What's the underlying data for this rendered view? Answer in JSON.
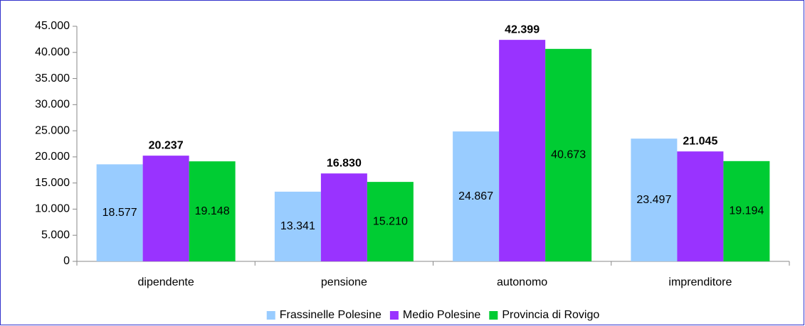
{
  "chart_data": {
    "type": "bar",
    "categories": [
      "dipendente",
      "pensione",
      "autonomo",
      "imprenditore"
    ],
    "series": [
      {
        "name": "Frassinelle Polesine",
        "color": "#99ccff",
        "values": [
          18577,
          13341,
          24867,
          23497
        ],
        "value_labels": [
          "18.577",
          "13.341",
          "24.867",
          "23.497"
        ]
      },
      {
        "name": "Medio Polesine",
        "color": "#9933ff",
        "values": [
          20237,
          16830,
          42399,
          21045
        ],
        "value_labels": [
          "20.237",
          "16.830",
          "42.399",
          "21.045"
        ]
      },
      {
        "name": "Provincia di Rovigo",
        "color": "#00cc33",
        "values": [
          19148,
          15210,
          40673,
          19194
        ],
        "value_labels": [
          "19.148",
          "15.210",
          "40.673",
          "19.194"
        ]
      }
    ],
    "ylim": [
      0,
      45000
    ],
    "yticks": [
      0,
      {
        "value": 5000,
        "label": "5.000"
      },
      {
        "value": 10000,
        "label": "10.000"
      },
      {
        "value": 15000,
        "label": "15.000"
      },
      {
        "value": 20000,
        "label": "20.000"
      },
      {
        "value": 25000,
        "label": "25.000"
      },
      {
        "value": 30000,
        "label": "30.000"
      },
      {
        "value": 35000,
        "label": "35.000"
      },
      {
        "value": 40000,
        "label": "40.000"
      },
      {
        "value": 45000,
        "label": "45.000"
      }
    ],
    "grid": false,
    "legend": "bottom"
  }
}
